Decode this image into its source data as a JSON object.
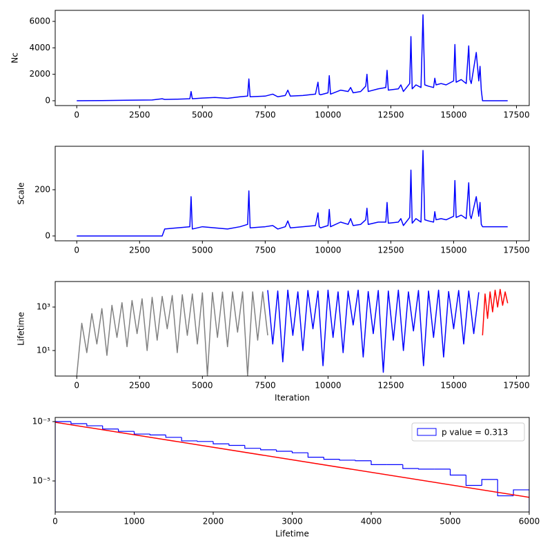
{
  "chart_data": [
    {
      "type": "line",
      "ylabel": "Nc",
      "xlim": [
        -858,
        18008
      ],
      "xticks": [
        0,
        2500,
        5000,
        7500,
        10000,
        12500,
        15000,
        17500
      ],
      "ylim": [
        -365,
        6834
      ],
      "yticks": [
        0,
        2000,
        4000,
        6000
      ],
      "series": [
        {
          "color": "blue",
          "x": [
            0,
            1000,
            2000,
            3000,
            3400,
            3500,
            4000,
            4500,
            4550,
            4600,
            5000,
            5500,
            6000,
            6500,
            6800,
            6850,
            6900,
            7500,
            7800,
            8000,
            8300,
            8400,
            8500,
            9000,
            9500,
            9600,
            9650,
            9700,
            10000,
            10050,
            10100,
            10500,
            10800,
            10900,
            11000,
            11300,
            11500,
            11550,
            11600,
            12000,
            12300,
            12350,
            12400,
            12800,
            12900,
            13000,
            13250,
            13300,
            13350,
            13500,
            13700,
            13780,
            13850,
            14000,
            14200,
            14250,
            14300,
            14500,
            14700,
            15000,
            15050,
            15100,
            15300,
            15500,
            15600,
            15650,
            15700,
            15900,
            16000,
            16050,
            16100,
            16150,
            17150
          ],
          "values": [
            0,
            10,
            40,
            60,
            150,
            100,
            120,
            150,
            700,
            150,
            200,
            250,
            180,
            300,
            350,
            1650,
            300,
            350,
            500,
            300,
            400,
            800,
            350,
            400,
            500,
            1400,
            500,
            450,
            600,
            1900,
            500,
            800,
            700,
            1000,
            600,
            700,
            1100,
            2000,
            700,
            900,
            1000,
            2300,
            800,
            900,
            1200,
            700,
            1300,
            4850,
            900,
            1200,
            1000,
            6500,
            1200,
            1100,
            1000,
            1700,
            1200,
            1300,
            1200,
            1500,
            4250,
            1400,
            1600,
            1300,
            4150,
            1600,
            1300,
            3650,
            1500,
            2600,
            800,
            0,
            0
          ]
        }
      ]
    },
    {
      "type": "line",
      "ylabel": "Scale",
      "xlim": [
        -858,
        18008
      ],
      "xticks": [
        0,
        2500,
        5000,
        7500,
        10000,
        12500,
        15000,
        17500
      ],
      "ylim": [
        -21,
        388
      ],
      "yticks": [
        0,
        200
      ],
      "series": [
        {
          "color": "blue",
          "x": [
            0,
            1000,
            2000,
            3000,
            3400,
            3500,
            4000,
            4500,
            4550,
            4600,
            5000,
            5500,
            6000,
            6500,
            6800,
            6850,
            6900,
            7500,
            7800,
            8000,
            8300,
            8400,
            8500,
            9000,
            9500,
            9600,
            9650,
            9700,
            10000,
            10050,
            10100,
            10500,
            10800,
            10900,
            11000,
            11300,
            11500,
            11550,
            11600,
            12000,
            12300,
            12350,
            12400,
            12800,
            12900,
            13000,
            13250,
            13300,
            13350,
            13500,
            13700,
            13780,
            13850,
            14000,
            14200,
            14250,
            14300,
            14500,
            14700,
            15000,
            15050,
            15100,
            15300,
            15500,
            15600,
            15650,
            15700,
            15900,
            16000,
            16050,
            16100,
            16150,
            17150
          ],
          "values": [
            0,
            0,
            0,
            0,
            0,
            30,
            35,
            40,
            170,
            30,
            40,
            35,
            30,
            40,
            50,
            195,
            35,
            40,
            45,
            30,
            40,
            65,
            35,
            40,
            45,
            100,
            40,
            35,
            45,
            115,
            40,
            60,
            50,
            75,
            45,
            50,
            70,
            120,
            50,
            60,
            60,
            145,
            55,
            60,
            75,
            45,
            80,
            285,
            55,
            75,
            60,
            370,
            70,
            65,
            60,
            105,
            70,
            75,
            70,
            85,
            240,
            80,
            90,
            75,
            230,
            90,
            75,
            170,
            85,
            145,
            50,
            40,
            40
          ]
        }
      ]
    },
    {
      "type": "line",
      "ylabel": "Lifetime",
      "xlabel": "Iteration",
      "log_y": true,
      "xlim": [
        -858,
        18008
      ],
      "xticks": [
        0,
        2500,
        5000,
        7500,
        10000,
        12500,
        15000,
        17500
      ],
      "ylim": [
        0.67,
        14960
      ],
      "yticks": [
        {
          "value": 10,
          "label": "10¹"
        },
        {
          "value": 1000,
          "label": "10³"
        }
      ],
      "series": [
        {
          "color": "gray",
          "x": [
            0,
            200,
            400,
            600,
            800,
            1000,
            1200,
            1400,
            1600,
            1800,
            2000,
            2200,
            2400,
            2600,
            2800,
            3000,
            3200,
            3400,
            3600,
            3800,
            4000,
            4200,
            4400,
            4600,
            4800,
            5000,
            5200,
            5400,
            5600,
            5800,
            6000,
            6200,
            6400,
            6600,
            6800,
            7000,
            7200,
            7400,
            7600
          ],
          "values": [
            0.7,
            180,
            8,
            500,
            20,
            850,
            6,
            1200,
            40,
            1600,
            15,
            2000,
            60,
            2400,
            10,
            2800,
            30,
            3100,
            100,
            3400,
            8,
            3700,
            50,
            4000,
            20,
            4500,
            0.7,
            4700,
            40,
            4900,
            15,
            5000,
            70,
            5000,
            0.7,
            5000,
            30,
            5000,
            50
          ]
        },
        {
          "color": "blue",
          "x": [
            7600,
            7800,
            8000,
            8200,
            8400,
            8600,
            8800,
            9000,
            9200,
            9400,
            9600,
            9800,
            10000,
            10200,
            10400,
            10600,
            10800,
            11000,
            11200,
            11400,
            11600,
            11800,
            12000,
            12200,
            12400,
            12600,
            12800,
            13000,
            13200,
            13400,
            13600,
            13800,
            14000,
            14200,
            14400,
            14600,
            14800,
            15000,
            15200,
            15400,
            15600,
            15800,
            16000
          ],
          "values": [
            6000,
            20,
            5500,
            3,
            6000,
            50,
            5000,
            10,
            5800,
            100,
            5500,
            2,
            6000,
            40,
            5000,
            8,
            5500,
            150,
            6000,
            5,
            5200,
            60,
            5800,
            1,
            5500,
            30,
            6000,
            10,
            5000,
            80,
            5800,
            2,
            5500,
            40,
            6000,
            5,
            5200,
            100,
            5800,
            20,
            5500,
            60,
            4800
          ]
        },
        {
          "color": "red",
          "x": [
            16150,
            16250,
            16350,
            16450,
            16550,
            16650,
            16750,
            16850,
            16950,
            17050,
            17150
          ],
          "values": [
            50,
            4000,
            300,
            5000,
            600,
            6000,
            1000,
            6500,
            1200,
            5000,
            1500
          ]
        }
      ]
    },
    {
      "type": "histogram",
      "xlabel": "Lifetime",
      "log_y": true,
      "color": "blue",
      "name": "p value = 0.313",
      "legend": "upper right",
      "xlim": [
        0,
        6000
      ],
      "xticks": [
        0,
        1000,
        2000,
        3000,
        4000,
        5000,
        6000
      ],
      "ylim": [
        9e-07,
        0.00138
      ],
      "yticks": [
        {
          "value": 1e-05,
          "label": "10⁻⁵"
        },
        {
          "value": 0.001,
          "label": "10⁻³"
        }
      ],
      "bins": [
        0,
        200,
        400,
        600,
        800,
        1000,
        1200,
        1400,
        1600,
        1800,
        2000,
        2200,
        2400,
        2600,
        2800,
        3000,
        3200,
        3400,
        3600,
        3800,
        4000,
        4200,
        4400,
        4600,
        4800,
        5000,
        5200,
        5400,
        5600,
        5800,
        6000
      ],
      "values": [
        0.001,
        0.000851,
        0.000724,
        0.000562,
        0.000468,
        0.00038,
        0.000355,
        0.000295,
        0.000224,
        0.000214,
        0.000178,
        0.000158,
        0.000126,
        0.000112,
        0.0001,
        8.91e-05,
        6.31e-05,
        5.37e-05,
        5.01e-05,
        4.79e-05,
        3.55e-05,
        3.55e-05,
        2.63e-05,
        2.51e-05,
        2.51e-05,
        1.58e-05,
        7.08e-06,
        1.12e-05,
        3.16e-06,
        5.01e-06
      ],
      "fit": {
        "color": "red",
        "x": [
          0,
          6000
        ],
        "values": [
          0.00095,
          2.8e-06
        ]
      }
    }
  ]
}
